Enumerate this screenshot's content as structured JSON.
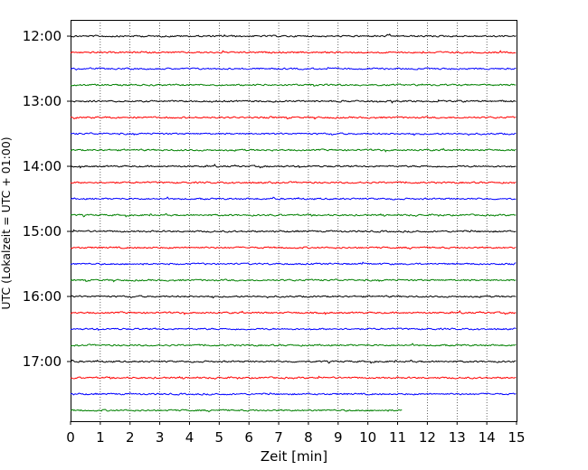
{
  "chart_data": {
    "type": "line",
    "title": "",
    "xlabel": "Zeit  [min]",
    "ylabel": "UTC (Lokalzeit = UTC + 01:00)",
    "xlim": [
      0,
      15
    ],
    "x_ticks": [
      "0",
      "1",
      "2",
      "3",
      "4",
      "5",
      "6",
      "7",
      "8",
      "9",
      "10",
      "11",
      "12",
      "13",
      "14",
      "15"
    ],
    "y_ticks": [
      "12:00",
      "13:00",
      "14:00",
      "15:00",
      "16:00",
      "17:00"
    ],
    "grid": "vertical dotted lines at each minute",
    "trace_interval_minutes": 15,
    "trace_colors": [
      "#000000",
      "#ff0000",
      "#0000ff",
      "#008000"
    ],
    "traces": [
      {
        "start": "12:00",
        "end_min": 15
      },
      {
        "start": "12:15",
        "end_min": 15
      },
      {
        "start": "12:30",
        "end_min": 15
      },
      {
        "start": "12:45",
        "end_min": 15
      },
      {
        "start": "13:00",
        "end_min": 15
      },
      {
        "start": "13:15",
        "end_min": 15
      },
      {
        "start": "13:30",
        "end_min": 15
      },
      {
        "start": "13:45",
        "end_min": 15
      },
      {
        "start": "14:00",
        "end_min": 15
      },
      {
        "start": "14:15",
        "end_min": 15
      },
      {
        "start": "14:30",
        "end_min": 15
      },
      {
        "start": "14:45",
        "end_min": 15
      },
      {
        "start": "15:00",
        "end_min": 15
      },
      {
        "start": "15:15",
        "end_min": 15
      },
      {
        "start": "15:30",
        "end_min": 15
      },
      {
        "start": "15:45",
        "end_min": 15
      },
      {
        "start": "16:00",
        "end_min": 15
      },
      {
        "start": "16:15",
        "end_min": 15
      },
      {
        "start": "16:30",
        "end_min": 15
      },
      {
        "start": "16:45",
        "end_min": 15
      },
      {
        "start": "17:00",
        "end_min": 15
      },
      {
        "start": "17:15",
        "end_min": 15
      },
      {
        "start": "17:30",
        "end_min": 15
      },
      {
        "start": "17:45",
        "end_min": 11.15
      }
    ]
  }
}
